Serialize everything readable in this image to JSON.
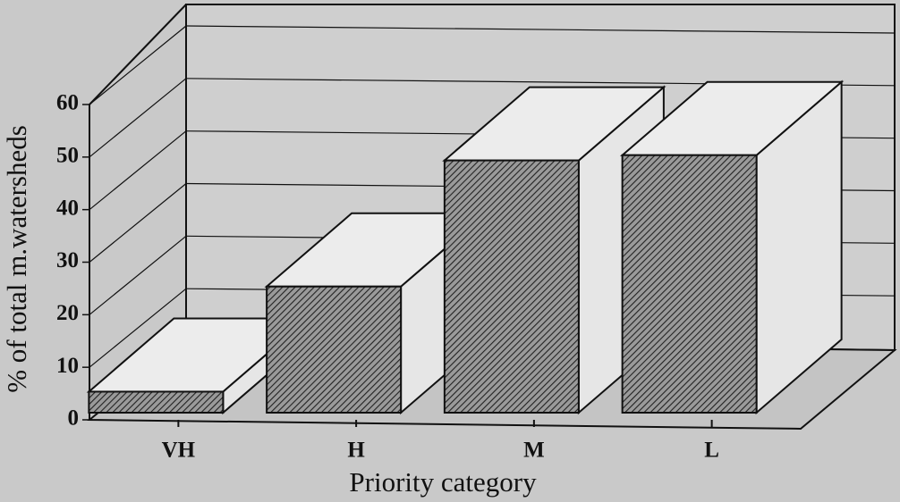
{
  "chart_data": {
    "type": "bar3d",
    "categories": [
      "VH",
      "H",
      "M",
      "L"
    ],
    "values": [
      4,
      24,
      48,
      49
    ],
    "ylabel": "% of total m.watersheds",
    "xlabel": "Priority category",
    "ylim": [
      0,
      60
    ],
    "yticks": [
      0,
      10,
      20,
      30,
      40,
      50,
      60
    ],
    "grid": true,
    "color": "#555555"
  }
}
